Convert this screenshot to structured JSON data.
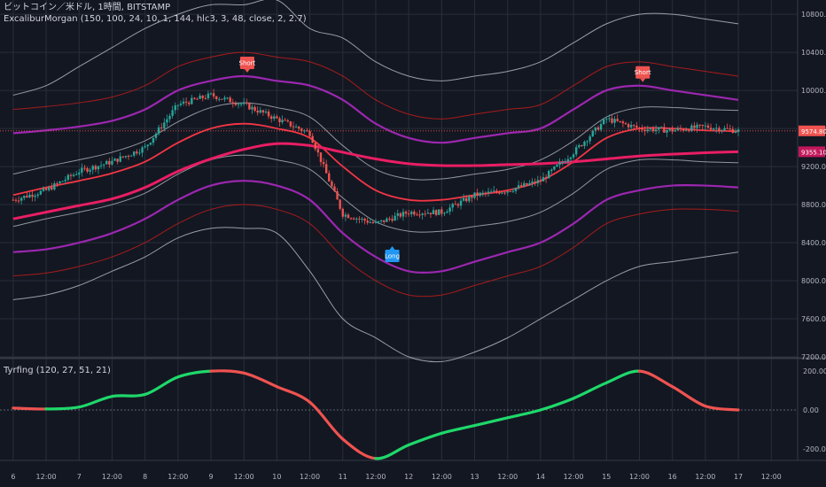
{
  "header": {
    "symbol_line": "ビットコイン／米ドル, 1時間, BITSTAMP",
    "indicator_line": "ExcaliburMorgan (150, 100, 24, 10, 1, 144, hlc3, 3, 48, close, 2, 2.7)",
    "oscillator_line": "Tyrfing (120, 27, 51, 21)"
  },
  "colors": {
    "background": "#131722",
    "grid": "#2a2e39",
    "candle_up": "#26a69a",
    "candle_down": "#ef5350",
    "outer_band": "#b2b5be",
    "purple_band": "#9c27b0",
    "red_band": "#f23645",
    "thin_red": "#b71c1c",
    "main_ma": "#e91e63",
    "osc_up": "#1fd86a",
    "osc_down": "#ef5350",
    "short_tag": "#ef5350",
    "long_tag": "#2196f3"
  },
  "price_axis": {
    "ticks": [
      "10800.00",
      "10400.00",
      "10000.00",
      "9600.00",
      "9200.00",
      "8800.00",
      "8400.00",
      "8000.00",
      "7600.00",
      "7200.00"
    ],
    "current_price": "9574.80",
    "ma_price": "9355.10"
  },
  "osc_axis": {
    "ticks": [
      "200.00",
      "0.00",
      "-200.00"
    ]
  },
  "time_axis": {
    "ticks": [
      "6",
      "12:00",
      "7",
      "12:00",
      "8",
      "12:00",
      "9",
      "12:00",
      "10",
      "12:00",
      "11",
      "12:00",
      "12",
      "12:00",
      "13",
      "12:00",
      "14",
      "12:00",
      "15",
      "12:00",
      "16",
      "12:00",
      "17",
      "12:00"
    ]
  },
  "signals": [
    {
      "label": "Short",
      "type": "short"
    },
    {
      "label": "Long",
      "type": "long"
    },
    {
      "label": "Short",
      "type": "short"
    }
  ],
  "chart_data": {
    "type": "line",
    "title": "ビットコイン／米ドル, 1時間, BITSTAMP",
    "ylim": [
      7200,
      10950
    ],
    "x": [
      6,
      6.5,
      7,
      7.5,
      8,
      8.5,
      9,
      9.5,
      10,
      10.5,
      11,
      11.5,
      12,
      12.5,
      13,
      13.5,
      14,
      14.5,
      15,
      15.5,
      16,
      16.5,
      17
    ],
    "series": [
      {
        "name": "close",
        "values": [
          8850,
          8950,
          9150,
          9250,
          9400,
          9850,
          9950,
          9850,
          9700,
          9550,
          8700,
          8600,
          8720,
          8720,
          8900,
          8950,
          9050,
          9350,
          9700,
          9600,
          9580,
          9620,
          9575
        ]
      },
      {
        "name": "upper_outer",
        "values": [
          9950,
          10050,
          10250,
          10450,
          10650,
          10800,
          10900,
          10900,
          10950,
          10650,
          10550,
          10300,
          10150,
          10100,
          10150,
          10200,
          10300,
          10500,
          10700,
          10800,
          10800,
          10750,
          10700
        ]
      },
      {
        "name": "upper_purple",
        "values": [
          9550,
          9580,
          9620,
          9680,
          9800,
          10000,
          10100,
          10150,
          10100,
          10050,
          9900,
          9650,
          9500,
          9450,
          9500,
          9550,
          9600,
          9800,
          10000,
          10050,
          10000,
          9950,
          9900
        ]
      },
      {
        "name": "mid_red",
        "values": [
          8900,
          8980,
          9050,
          9130,
          9250,
          9450,
          9600,
          9650,
          9600,
          9500,
          9200,
          8950,
          8850,
          8850,
          8900,
          8950,
          9050,
          9250,
          9500,
          9600,
          9600,
          9580,
          9570
        ]
      },
      {
        "name": "main_ma",
        "values": [
          8650,
          8720,
          8790,
          8860,
          8980,
          9150,
          9280,
          9380,
          9440,
          9420,
          9350,
          9280,
          9230,
          9210,
          9210,
          9220,
          9230,
          9250,
          9280,
          9310,
          9330,
          9345,
          9355
        ]
      },
      {
        "name": "lower_purple",
        "values": [
          8300,
          8330,
          8400,
          8500,
          8650,
          8850,
          9000,
          9050,
          9000,
          8850,
          8500,
          8250,
          8100,
          8100,
          8200,
          8300,
          8400,
          8600,
          8850,
          8950,
          9000,
          9000,
          8980
        ]
      },
      {
        "name": "lower_outer",
        "values": [
          7800,
          7850,
          7950,
          8100,
          8250,
          8450,
          8550,
          8550,
          8500,
          8100,
          7600,
          7400,
          7200,
          7150,
          7250,
          7400,
          7600,
          7800,
          8000,
          8150,
          8200,
          8250,
          8300
        ]
      }
    ],
    "oscillator": {
      "name": "Tyrfing (120, 27, 51, 21)",
      "ylim": [
        -260,
        260
      ],
      "x": [
        6,
        6.5,
        7,
        7.5,
        8,
        8.5,
        9,
        9.5,
        10,
        10.5,
        11,
        11.5,
        12,
        12.5,
        13,
        13.5,
        14,
        14.5,
        15,
        15.5,
        16,
        16.5,
        17
      ],
      "values": [
        10,
        5,
        15,
        70,
        80,
        170,
        200,
        190,
        120,
        40,
        -150,
        -250,
        -180,
        -120,
        -80,
        -40,
        0,
        60,
        140,
        200,
        120,
        20,
        0
      ]
    }
  }
}
